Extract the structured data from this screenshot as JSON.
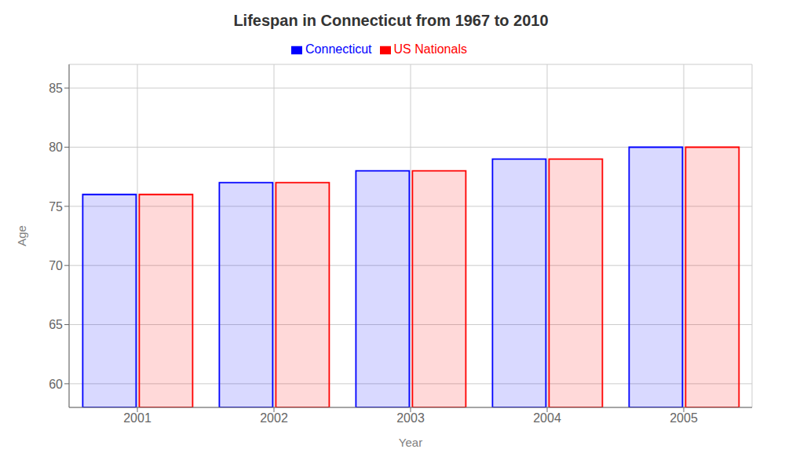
{
  "chart_data": {
    "type": "bar",
    "title": "Lifespan in Connecticut from 1967 to 2010",
    "xlabel": "Year",
    "ylabel": "Age",
    "categories": [
      "2001",
      "2002",
      "2003",
      "2004",
      "2005"
    ],
    "series": [
      {
        "name": "Connecticut",
        "color": "#0000ff",
        "values": [
          76,
          77,
          78,
          79,
          80
        ]
      },
      {
        "name": "US Nationals",
        "color": "#ff0000",
        "values": [
          76,
          77,
          78,
          79,
          80
        ]
      }
    ],
    "ylim": [
      58,
      87
    ],
    "yticks": [
      60,
      65,
      70,
      75,
      80,
      85
    ],
    "grid": true,
    "legend": "top"
  }
}
